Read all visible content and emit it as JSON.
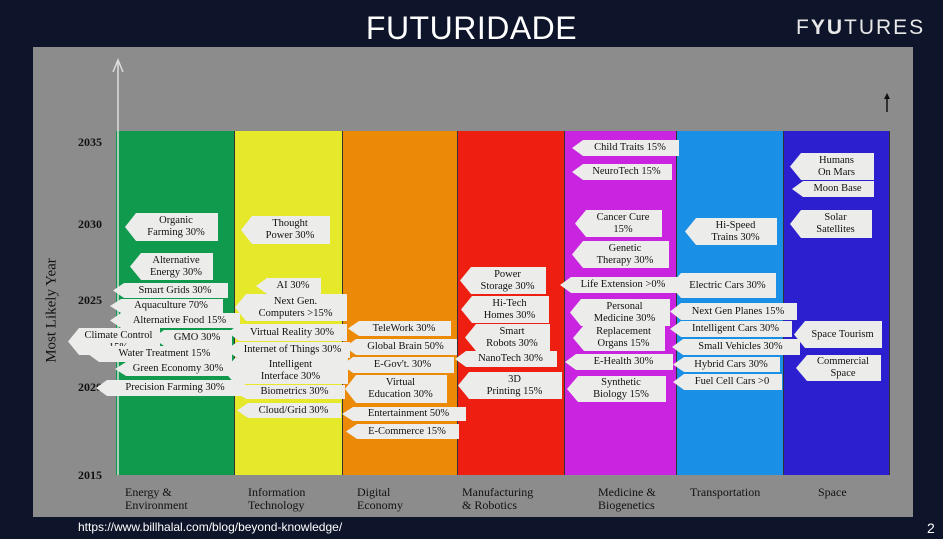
{
  "title": "FUTURIDADE",
  "logo": "FYUTURES",
  "footer_url": "https://www.billhalal.com/blog/beyond-knowledge/",
  "page_number": "2",
  "y_axis_label": "Most Likely Year",
  "years": [
    "2035",
    "2030",
    "2025",
    "2020",
    "2015"
  ],
  "columns": [
    {
      "name": "Energy &\nEnvironment",
      "color": "#0f9a4e",
      "items": [
        "Organic\nFarming 30%",
        "Alternative\nEnergy 30%",
        "Smart Grids 30%",
        "Aquaculture 70%",
        "Alternative Food 15%",
        "Climate Control\n15%",
        "GMO 30%",
        "Water Treatment 15%",
        "Green Economy 30%",
        "Precision Farming 30%"
      ]
    },
    {
      "name": "Information\nTechnology",
      "color": "#e6e82a",
      "items": [
        "Thought\nPower 30%",
        "AI   30%",
        "Next Gen.\nComputers >15%",
        "Virtual Reality 30%",
        "Internet of Things 30%",
        "Intelligent\nInterface 30%",
        "Biometrics 30%",
        "Cloud/Grid 30%"
      ]
    },
    {
      "name": "Digital\nEconomy",
      "color": "#ec8a07",
      "items": [
        "TeleWork 30%",
        "Global Brain 50%",
        "E-Gov't. 30%",
        "Virtual\nEducation 30%",
        "Entertainment 50%",
        "E-Commerce 15%"
      ]
    },
    {
      "name": "Manufacturing\n& Robotics",
      "color": "#ee1e10",
      "items": [
        "Power\nStorage 30%",
        "Hi-Tech\nHomes 30%",
        "Smart\nRobots 30%",
        "NanoTech 30%",
        "3D\nPrinting 15%"
      ]
    },
    {
      "name": "Medicine &\nBiogenetics",
      "color": "#c925e0",
      "items": [
        "Child Traits 15%",
        "NeuroTech 15%",
        "Cancer Cure\n15%",
        "Genetic\nTherapy 30%",
        "Life Extension >0%",
        "Personal\nMedicine 30%",
        "Replacement\nOrgans 15%",
        "E-Health 30%",
        "Synthetic\nBiology 15%"
      ]
    },
    {
      "name": "Transportation",
      "color": "#1a8fe6",
      "items": [
        "Hi-Speed\nTrains 30%",
        "Electric Cars 30%",
        "Next Gen Planes 15%",
        "Intelligent Cars 30%",
        "Small Vehicles 30%",
        "Hybrid Cars 30%",
        "Fuel Cell Cars >0"
      ]
    },
    {
      "name": "Space",
      "color": "#2b1fd0",
      "items": [
        "Humans\nOn Mars",
        "Moon Base",
        "Solar\nSatellites",
        "Space Tourism",
        "Commercial\nSpace"
      ]
    }
  ]
}
